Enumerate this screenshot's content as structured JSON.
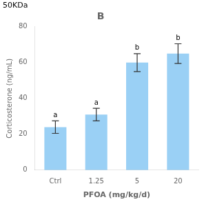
{
  "chart_data": {
    "type": "bar",
    "title": "B",
    "categories": [
      "Ctrl",
      "1.25",
      "5",
      "20"
    ],
    "values": [
      24,
      31,
      60,
      65
    ],
    "errors": [
      3.5,
      3.5,
      5.0,
      5.5
    ],
    "significance": [
      "a",
      "a",
      "b",
      "b"
    ],
    "annotations": [
      "50KDa"
    ],
    "ylabel": "Corticosterone (ng/mL)",
    "xlabel": "PFOA (mg/kg/d)",
    "ylim": [
      0,
      80
    ],
    "yticks": [
      0,
      20,
      40,
      60,
      80
    ],
    "grid": false
  }
}
